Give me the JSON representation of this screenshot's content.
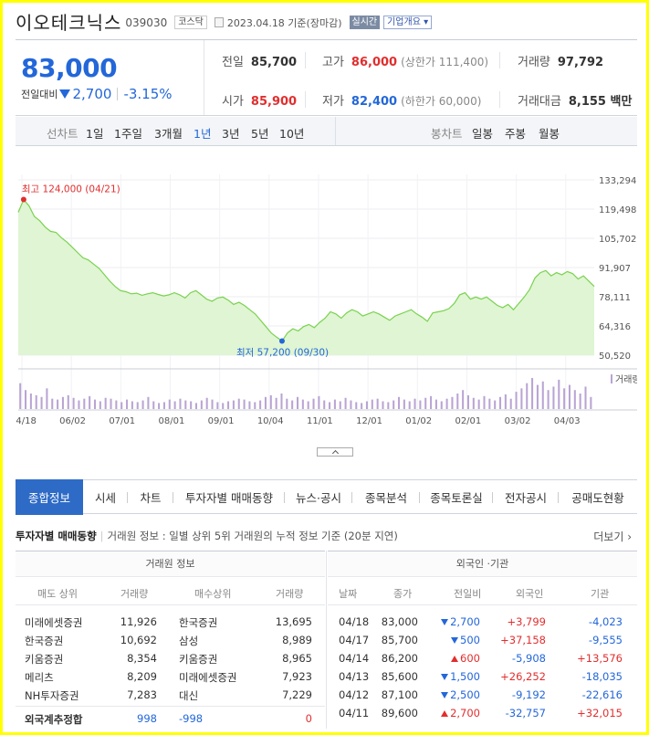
{
  "header": {
    "name": "이오테크닉스",
    "code": "039030",
    "market": "코스닥",
    "date_text": "2023.04.18 기준(장마감)",
    "realtime_label": "실시간",
    "company_info_label": "기업개요 ▾"
  },
  "price": {
    "current": "83,000",
    "change_label": "전일대비",
    "change": "2,700",
    "change_pct": "-3.15%",
    "direction": "down"
  },
  "stats": {
    "prev_label": "전일",
    "prev": "85,700",
    "high_label": "고가",
    "high": "86,000",
    "upper_limit": "(상한가 111,400)",
    "volume_label": "거래량",
    "volume": "97,792",
    "open_label": "시가",
    "open": "85,900",
    "low_label": "저가",
    "low": "82,400",
    "lower_limit": "(하한가 60,000)",
    "amount_label": "거래대금",
    "amount": "8,155 백만"
  },
  "period_tabs": {
    "line_label": "선차트",
    "line_items": [
      "1일",
      "1주일",
      "3개월",
      "1년",
      "3년",
      "5년",
      "10년"
    ],
    "active_line": "1년",
    "candle_label": "봉차트",
    "candle_items": [
      "일봉",
      "주봉",
      "월봉"
    ]
  },
  "chart_data": {
    "type": "area",
    "y_ticks": [
      "133,294",
      "119,498",
      "105,702",
      "91,907",
      "78,111",
      "64,316",
      "50,520"
    ],
    "ylim": [
      50520,
      133294
    ],
    "x_ticks": [
      "04/18",
      "06/02",
      "07/01",
      "08/01",
      "09/01",
      "10/04",
      "11/01",
      "12/01",
      "01/02",
      "02/01",
      "03/02",
      "04/03"
    ],
    "series": [
      {
        "values": [
          118000,
          124000,
          121000,
          116000,
          114000,
          111000,
          109000,
          108500,
          106000,
          104000,
          101500,
          99000,
          96500,
          95500,
          93500,
          91500,
          88500,
          85500,
          83000,
          81000,
          80500,
          79500,
          79800,
          78800,
          79500,
          80000,
          79200,
          78500,
          79000,
          80000,
          79000,
          77500,
          80000,
          81000,
          79000,
          77000,
          76000,
          77500,
          78000,
          76500,
          74500,
          75500,
          74000,
          72000,
          70000,
          67000,
          64000,
          61000,
          59000,
          57200,
          61000,
          63000,
          62000,
          64000,
          65000,
          63500,
          66000,
          68000,
          71000,
          70000,
          68000,
          70500,
          72000,
          71000,
          69000,
          70000,
          71000,
          70000,
          68500,
          67000,
          69000,
          70000,
          71000,
          72000,
          70000,
          68500,
          66500,
          70500,
          71000,
          71500,
          72500,
          75000,
          79000,
          80000,
          77000,
          78000,
          77000,
          78000,
          76000,
          74000,
          73000,
          74500,
          72000,
          75000,
          78000,
          81500,
          87000,
          89500,
          90500,
          88000,
          89500,
          88500,
          90000,
          89000,
          86500,
          88000,
          85500,
          83000
        ]
      }
    ],
    "annotations": {
      "high_label": "최고 124,000 (04/21)",
      "low_label": "최저 57,200 (09/30)",
      "volume_label": "거래량"
    },
    "volume": [
      30,
      22,
      18,
      16,
      14,
      24,
      12,
      11,
      14,
      16,
      13,
      10,
      12,
      15,
      11,
      9,
      13,
      12,
      10,
      8,
      11,
      9,
      8,
      10,
      14,
      9,
      7,
      8,
      11,
      9,
      12,
      10,
      9,
      7,
      10,
      13,
      11,
      8,
      7,
      9,
      10,
      12,
      11,
      9,
      8,
      10,
      14,
      16,
      13,
      18,
      12,
      10,
      14,
      11,
      9,
      12,
      15,
      10,
      8,
      11,
      9,
      13,
      10,
      8,
      7,
      9,
      11,
      12,
      9,
      8,
      10,
      14,
      11,
      9,
      12,
      10,
      13,
      15,
      11,
      9,
      12,
      14,
      18,
      22,
      16,
      13,
      11,
      15,
      12,
      10,
      14,
      17,
      12,
      20,
      24,
      30,
      36,
      28,
      32,
      22,
      26,
      34,
      24,
      28,
      22,
      18,
      26,
      14
    ]
  },
  "tabs": [
    "종합정보",
    "시세",
    "차트",
    "투자자별 매매동향",
    "뉴스·공시",
    "종목분석",
    "종목토론실",
    "전자공시",
    "공매도현황"
  ],
  "section": {
    "title": "투자자별 매매동향",
    "desc": "거래원 정보 : 일별 상위 5위 거래원의 누적 정보 기준 (20분 지연)",
    "more": "더보기 ›"
  },
  "broker_table": {
    "title": "거래원 정보",
    "headers": [
      "매도 상위",
      "거래량",
      "매수상위",
      "거래량"
    ],
    "rows": [
      [
        "미래에셋증권",
        "11,926",
        "한국증권",
        "13,695"
      ],
      [
        "한국증권",
        "10,692",
        "삼성",
        "8,989"
      ],
      [
        "키움증권",
        "8,354",
        "키움증권",
        "8,965"
      ],
      [
        "메리츠",
        "8,209",
        "미래에셋증권",
        "7,923"
      ],
      [
        "NH투자증권",
        "7,283",
        "대신",
        "7,229"
      ]
    ],
    "total": [
      "외국계추정합",
      "998",
      "-998",
      "0"
    ]
  },
  "foreign_table": {
    "title": "외국인 ·기관",
    "headers": [
      "날짜",
      "종가",
      "전일비",
      "외국인",
      "기관"
    ],
    "rows": [
      [
        "04/18",
        "83,000",
        "2,700",
        "+3,799",
        "-4,023"
      ],
      [
        "04/17",
        "85,700",
        "500",
        "+37,158",
        "-9,555"
      ],
      [
        "04/14",
        "86,200",
        "600",
        "-5,908",
        "+13,576"
      ],
      [
        "04/13",
        "85,600",
        "1,500",
        "+26,252",
        "-18,035"
      ],
      [
        "04/12",
        "87,100",
        "2,500",
        "-9,192",
        "-22,616"
      ],
      [
        "04/11",
        "89,600",
        "2,700",
        "-32,757",
        "+32,015"
      ]
    ],
    "row_dirs": [
      "down",
      "down",
      "up",
      "down",
      "down",
      "up"
    ]
  },
  "colors": {
    "up": "#e12e2e",
    "down": "#2367d9",
    "tab_active": "#2e6bc6",
    "area": "#a4e58d"
  }
}
